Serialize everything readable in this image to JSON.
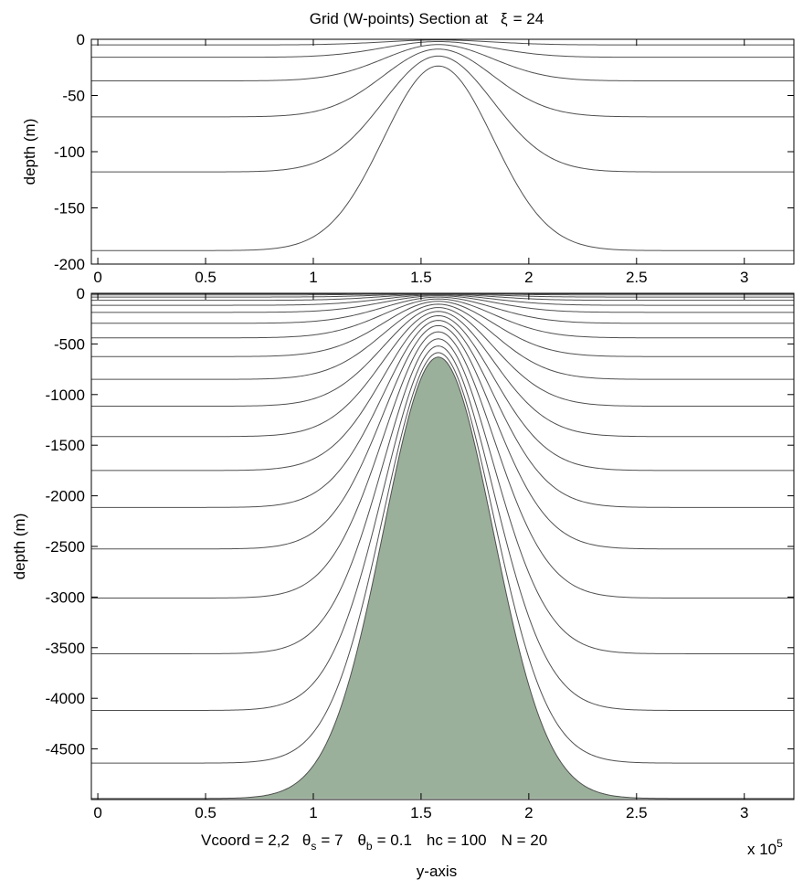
{
  "figure": {
    "title_prefix": "Grid (W-points) Section at",
    "title_symbol": "ξ",
    "title_suffix": "= 24",
    "params": {
      "vcoord": "Vcoord = 2,2",
      "theta_s_sym": "θ",
      "theta_s_sub": "s",
      "theta_s_val": "= 7",
      "theta_b_sym": "θ",
      "theta_b_sub": "b",
      "theta_b_val": "= 0.1",
      "hc": "hc  = 100",
      "n": "N = 20"
    },
    "xlabel": "y-axis",
    "x_exponent_base": "x 10",
    "x_exponent_power": "5"
  },
  "chart_data": [
    {
      "type": "line",
      "panel": "top",
      "ylabel": "depth  (m)",
      "xlim": [
        -0.03,
        3.23
      ],
      "ylim": [
        -200,
        0
      ],
      "x_ticks": [
        0,
        0.5,
        1,
        1.5,
        2,
        2.5,
        3
      ],
      "x_tick_labels": [
        "0",
        "0.5",
        "1",
        "1.5",
        "2",
        "2.5",
        "3"
      ],
      "y_ticks": [
        0,
        -50,
        -100,
        -150,
        -200
      ],
      "y_tick_labels": [
        "0",
        "-50",
        "-100",
        "-150",
        "-200"
      ],
      "grid": false,
      "x_multiplier": 100000,
      "topography": {
        "h_max": 4990,
        "h_min": 630,
        "center": 1.58,
        "width": 0.36,
        "fill": false
      },
      "series_depths_far_field": [
        0,
        -5,
        -16,
        -37,
        -69,
        -118,
        -188
      ]
    },
    {
      "type": "area",
      "panel": "bottom",
      "ylabel": "depth  (m)",
      "xlim": [
        -0.03,
        3.23
      ],
      "ylim": [
        -5000,
        0
      ],
      "x_ticks": [
        0,
        0.5,
        1,
        1.5,
        2,
        2.5,
        3
      ],
      "x_tick_labels": [
        "0",
        "0.5",
        "1",
        "1.5",
        "2",
        "2.5",
        "3"
      ],
      "y_ticks": [
        0,
        -500,
        -1000,
        -1500,
        -2000,
        -2500,
        -3000,
        -3500,
        -4000,
        -4500
      ],
      "y_tick_labels": [
        "0",
        "-500",
        "-1000",
        "-1500",
        "-2000",
        "-2500",
        "-3000",
        "-3500",
        "-4000",
        "-4500"
      ],
      "grid": false,
      "x_multiplier": 100000,
      "topography": {
        "h_max": 4990,
        "h_min": 630,
        "center": 1.58,
        "width": 0.36,
        "fill": true,
        "fill_color": "#9bb09b"
      },
      "series_depths_far_field": [
        0,
        -5,
        -16,
        -37,
        -69,
        -118,
        -188,
        -296,
        -440,
        -625,
        -850,
        -1115,
        -1415,
        -1750,
        -2115,
        -2525,
        -3010,
        -3560,
        -4120,
        -4640,
        -4990
      ]
    }
  ]
}
